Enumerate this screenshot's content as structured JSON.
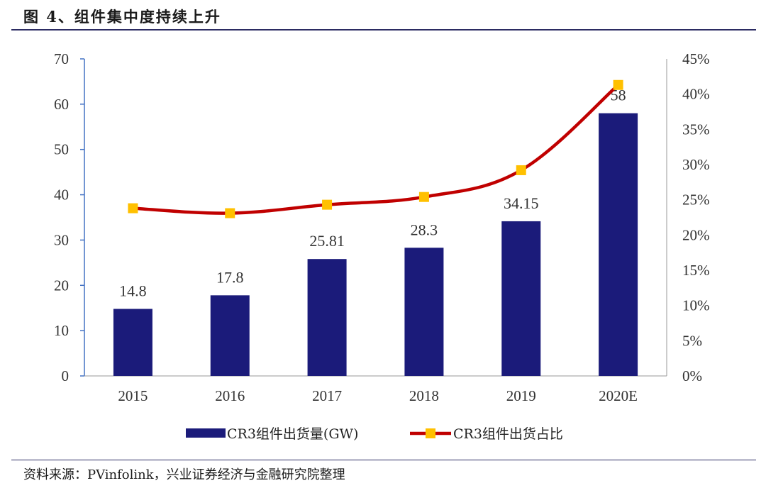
{
  "figure": {
    "title": "图 4、组件集中度持续上升",
    "source": "资料来源：PVinfolink，兴业证券经济与金融研究院整理"
  },
  "colors": {
    "bar": "#1b1b7a",
    "line": "#c00000",
    "marker": "#ffc000",
    "rule": "#2b2b62"
  },
  "chart_data": {
    "type": "bar",
    "categories": [
      "2015",
      "2016",
      "2017",
      "2018",
      "2019",
      "2020E"
    ],
    "series": [
      {
        "name": "CR3组件出货量(GW)",
        "type": "bar",
        "axis": "left",
        "values": [
          14.8,
          17.8,
          25.81,
          28.3,
          34.15,
          58
        ],
        "labels": [
          "14.8",
          "17.8",
          "25.81",
          "28.3",
          "34.15",
          "58"
        ]
      },
      {
        "name": "CR3组件出货占比",
        "type": "line",
        "axis": "right",
        "smooth": true,
        "values": [
          0.238,
          0.231,
          0.243,
          0.254,
          0.292,
          0.413
        ]
      }
    ],
    "y_left": {
      "ylim": [
        0,
        70
      ],
      "ticks": [
        0,
        10,
        20,
        30,
        40,
        50,
        60,
        70
      ]
    },
    "y_right": {
      "ylim": [
        0,
        0.45
      ],
      "ticks": [
        0,
        0.05,
        0.1,
        0.15,
        0.2,
        0.25,
        0.3,
        0.35,
        0.4,
        0.45
      ],
      "tick_labels": [
        "0%",
        "5%",
        "10%",
        "15%",
        "20%",
        "25%",
        "30%",
        "35%",
        "40%",
        "45%"
      ]
    },
    "grid": false,
    "legend": "bottom"
  }
}
